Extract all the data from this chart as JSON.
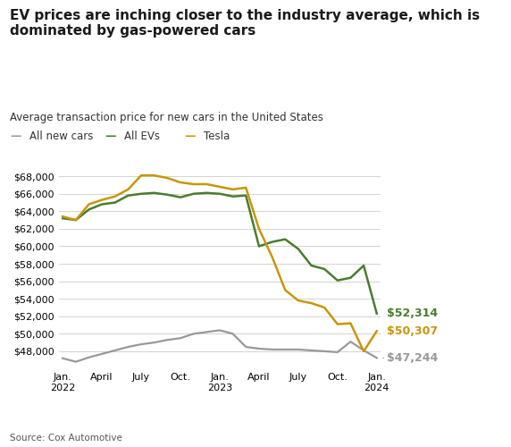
{
  "title": "EV prices are inching closer to the industry average, which is\ndominated by gas-powered cars",
  "subtitle": "Average transaction price for new cars in the United States",
  "source": "Source: Cox Automotive",
  "colors": {
    "all_new_cars": "#999999",
    "all_evs": "#4a7c2f",
    "tesla": "#c8960c"
  },
  "x_tick_labels": [
    "Jan.\n2022",
    "April",
    "July",
    "Oct.",
    "Jan.\n2023",
    "April",
    "July",
    "Oct.",
    "Jan.\n2024"
  ],
  "x_tick_positions": [
    0,
    3,
    6,
    9,
    12,
    15,
    18,
    21,
    24
  ],
  "ylim": [
    46000,
    69500
  ],
  "yticks": [
    48000,
    50000,
    52000,
    54000,
    56000,
    58000,
    60000,
    62000,
    64000,
    66000,
    68000
  ],
  "end_labels": {
    "all_new_cars": "$47,244",
    "all_evs": "$52,314",
    "tesla": "$50,307"
  },
  "all_new_cars": [
    47200,
    46800,
    47300,
    47700,
    48100,
    48500,
    48800,
    49000,
    49300,
    49500,
    50000,
    50200,
    50400,
    50000,
    48500,
    48300,
    48200,
    48200,
    48200,
    48100,
    48000,
    47900,
    49100,
    48100,
    47244
  ],
  "all_evs": [
    63200,
    63000,
    64200,
    64800,
    65000,
    65800,
    66000,
    66100,
    65900,
    65600,
    66000,
    66100,
    66000,
    65700,
    65800,
    60000,
    60500,
    60800,
    59700,
    57800,
    57400,
    56100,
    56400,
    57800,
    52314
  ],
  "tesla": [
    63400,
    63000,
    64800,
    65300,
    65700,
    66500,
    68100,
    68100,
    67800,
    67300,
    67100,
    67100,
    66800,
    66500,
    66700,
    62000,
    58800,
    55000,
    53800,
    53500,
    53000,
    51100,
    51200,
    48000,
    50307
  ]
}
